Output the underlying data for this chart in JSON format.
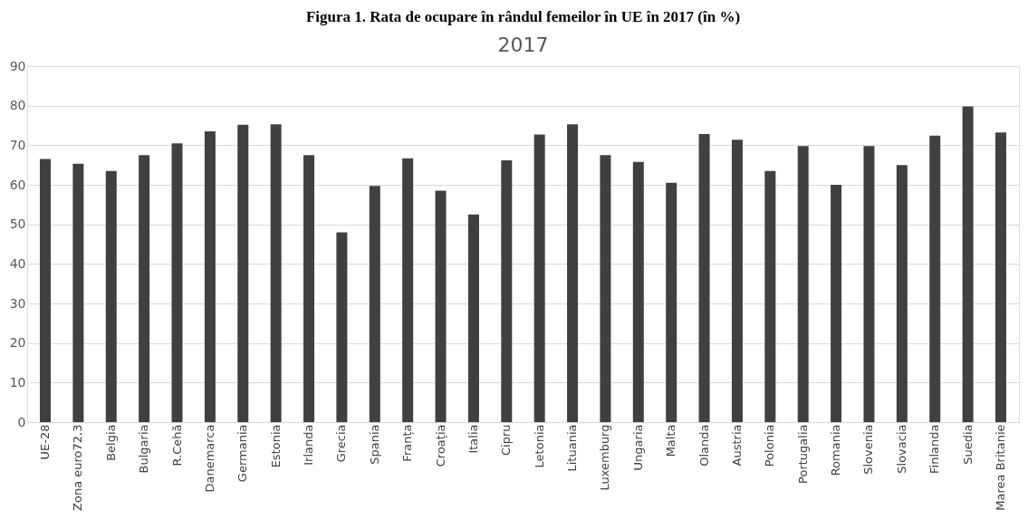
{
  "chart_data": {
    "type": "bar",
    "title": "Figura 1. Rata de ocupare în rândul femeilor în UE în 2017 (în %)",
    "subtitle": "2017",
    "categories": [
      "UE-28",
      "Zona euro72,3",
      "Belgia",
      "Bulgaria",
      "R.Cehă",
      "Danemarca",
      "Germania",
      "Estonia",
      "Irlanda",
      "Grecia",
      "Spania",
      "Franța",
      "Croația",
      "Italia",
      "Cipru",
      "Letonia",
      "Lituania",
      "Luxemburg",
      "Ungaria",
      "Malta",
      "Olanda",
      "Austria",
      "Polonia",
      "Portugalia",
      "Romania",
      "Slovenia",
      "Slovacia",
      "Finlanda",
      "Suedia",
      "Marea Britanie"
    ],
    "values": [
      66.5,
      65.3,
      63.5,
      67.5,
      70.5,
      73.5,
      75.2,
      75.3,
      67.5,
      48,
      59.7,
      66.7,
      58.5,
      52.5,
      66.2,
      72.7,
      75.3,
      67.5,
      65.8,
      60.5,
      72.8,
      71.4,
      63.5,
      69.8,
      60,
      69.8,
      65,
      72.4,
      79.8,
      73.2
    ],
    "color": "#404040",
    "ylim": [
      0,
      90
    ],
    "yticks": [
      0,
      10,
      20,
      30,
      40,
      50,
      60,
      70,
      80,
      90
    ],
    "grid": "y"
  }
}
